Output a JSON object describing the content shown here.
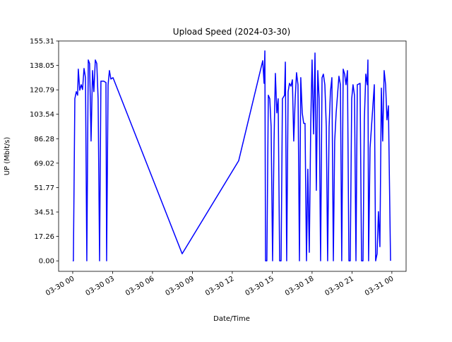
{
  "chart_data": {
    "type": "line",
    "title": "Upload Speed (2024-03-30)",
    "xlabel": "Date/Time",
    "ylabel": "UP (Mbit/s)",
    "color": "#0000ff",
    "x": [
      0,
      0.05,
      0.16,
      0.27,
      0.37,
      0.42,
      0.53,
      0.64,
      0.74,
      0.85,
      0.96,
      1.06,
      1.17,
      1.27,
      1.38,
      1.49,
      1.59,
      1.7,
      1.81,
      1.91,
      2.02,
      2.12,
      2.34,
      2.5,
      2.55,
      2.66,
      2.76,
      2.87,
      3.03,
      8.23,
      12.48,
      14.29,
      14.39,
      14.45,
      14.5,
      14.6,
      14.71,
      14.82,
      14.92,
      15.03,
      15.14,
      15.24,
      15.35,
      15.45,
      15.56,
      15.67,
      15.77,
      15.93,
      15.99,
      16.09,
      16.2,
      16.3,
      16.41,
      16.52,
      16.62,
      16.73,
      16.83,
      16.94,
      17.05,
      17.15,
      17.26,
      17.37,
      17.47,
      17.58,
      17.68,
      17.79,
      17.9,
      18.0,
      18.11,
      18.22,
      18.32,
      18.43,
      18.53,
      18.64,
      18.75,
      18.85,
      18.96,
      19.07,
      19.17,
      19.28,
      19.38,
      19.49,
      19.6,
      19.7,
      19.81,
      20.02,
      20.13,
      20.23,
      20.34,
      20.45,
      20.55,
      20.66,
      20.77,
      20.87,
      20.98,
      21.08,
      21.19,
      21.3,
      21.4,
      21.61,
      21.72,
      21.83,
      21.93,
      22.04,
      22.15,
      22.2,
      22.25,
      22.36,
      22.68,
      22.78,
      22.89,
      22.99,
      23.1,
      23.21,
      23.31,
      23.42,
      23.53,
      23.63,
      23.74,
      23.9
    ],
    "values": [
      0,
      0,
      114.5,
      119.5,
      117,
      135.4,
      120.5,
      124.4,
      121,
      135.9,
      129.4,
      0,
      141.9,
      139.4,
      84.6,
      134.4,
      119.5,
      141.9,
      139.4,
      114.5,
      0,
      126.9,
      126.9,
      125.9,
      0,
      124.4,
      134.4,
      128.4,
      129.4,
      5,
      70.7,
      141.4,
      125.4,
      148.3,
      0,
      0,
      117,
      114.5,
      94.6,
      0,
      84.6,
      132.4,
      104.5,
      114.5,
      0,
      0,
      114.5,
      117,
      140.4,
      0,
      119.5,
      125.4,
      123.4,
      127.9,
      84.6,
      114.5,
      132.9,
      124.4,
      0,
      129.4,
      104.5,
      97.1,
      97.1,
      0,
      64.7,
      6,
      97.1,
      141.9,
      89.6,
      146.8,
      49.8,
      134.4,
      114.5,
      0,
      129.4,
      131.9,
      124.4,
      94.6,
      0,
      94.6,
      119.5,
      129.4,
      0,
      84.6,
      104.5,
      130.4,
      124.4,
      0,
      135.4,
      131.9,
      124.4,
      134.4,
      0,
      0,
      114.5,
      124.4,
      117,
      0,
      124.4,
      125.4,
      0,
      0,
      99.6,
      131.9,
      124.4,
      141.9,
      0,
      79.6,
      124.4,
      0,
      5,
      34.8,
      10,
      122,
      84.6,
      134.4,
      124.4,
      99.6,
      109.5,
      0
    ],
    "xlim": [
      -1.06,
      25.07
    ],
    "ylim": [
      -7.4,
      155.31
    ],
    "xticks": [
      {
        "value": 0,
        "label": "03-30 00"
      },
      {
        "value": 3,
        "label": "03-30 03"
      },
      {
        "value": 6,
        "label": "03-30 06"
      },
      {
        "value": 9,
        "label": "03-30 09"
      },
      {
        "value": 12,
        "label": "03-30 12"
      },
      {
        "value": 15,
        "label": "03-30 15"
      },
      {
        "value": 18,
        "label": "03-30 18"
      },
      {
        "value": 21,
        "label": "03-30 21"
      },
      {
        "value": 24,
        "label": "03-31 00"
      }
    ],
    "yticks": [
      {
        "value": 0,
        "label": "0.00"
      },
      17.26,
      34.51,
      51.77,
      69.02,
      86.28,
      103.54,
      120.79,
      138.05,
      155.31
    ]
  }
}
